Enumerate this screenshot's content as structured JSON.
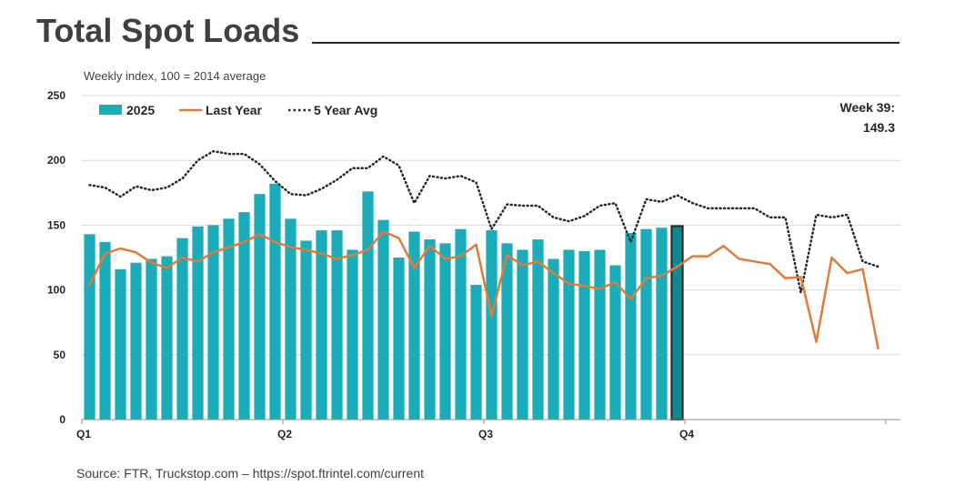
{
  "chart_data": {
    "type": "bar",
    "title": "Total Spot Loads",
    "subtitle": "Weekly index, 100 = 2014 average",
    "source": "Source: FTR, Truckstop.com – https://spot.ftrintel.com/current",
    "ylim": [
      0,
      250
    ],
    "yticks": [
      "0",
      "50",
      "100",
      "150",
      "200",
      "250"
    ],
    "xticks": [
      "Q1",
      "Q2",
      "Q3",
      "Q4"
    ],
    "weeks": 52,
    "annotation": {
      "line1": "Week 39:",
      "line2": "149.3"
    },
    "legend": {
      "bars": "2025",
      "last_year": "Last Year",
      "five_year": "5 Year Avg"
    },
    "series": [
      {
        "name": "2025",
        "type": "bar",
        "color": "#1aacb9",
        "highlight_color": "#0e8791",
        "values": [
          143,
          137,
          116,
          121,
          124,
          126,
          140,
          149,
          150,
          155,
          160,
          174,
          182,
          155,
          138,
          146,
          146,
          131,
          176,
          154,
          125,
          145,
          139,
          136,
          147,
          104,
          146,
          136,
          131,
          139,
          124,
          131,
          130,
          131,
          119,
          144,
          147,
          148,
          149.3
        ]
      },
      {
        "name": "Last Year",
        "type": "line",
        "color": "#e07b39",
        "values": [
          104,
          128,
          132,
          129,
          121,
          117,
          125,
          122,
          129,
          133,
          137,
          143,
          137,
          133,
          131,
          128,
          124,
          127,
          131,
          145,
          140,
          117,
          134,
          124,
          126,
          135,
          80,
          127,
          119,
          122,
          113,
          105,
          103,
          101,
          106,
          93,
          109,
          111,
          118,
          126,
          126,
          134,
          124,
          122,
          120,
          109,
          110,
          60,
          125,
          113,
          116,
          55
        ]
      },
      {
        "name": "5 Year Avg",
        "type": "line",
        "color": "#262626",
        "values": [
          181,
          179,
          172,
          180,
          177,
          179,
          186,
          200,
          207,
          205,
          205,
          197,
          184,
          174,
          173,
          178,
          185,
          194,
          194,
          203,
          196,
          167,
          188,
          186,
          188,
          183,
          147,
          166,
          165,
          165,
          156,
          153,
          157,
          165,
          167,
          137,
          170,
          168,
          173,
          167,
          163,
          163,
          163,
          163,
          156,
          156,
          98,
          158,
          156,
          158,
          122,
          118
        ]
      }
    ]
  }
}
